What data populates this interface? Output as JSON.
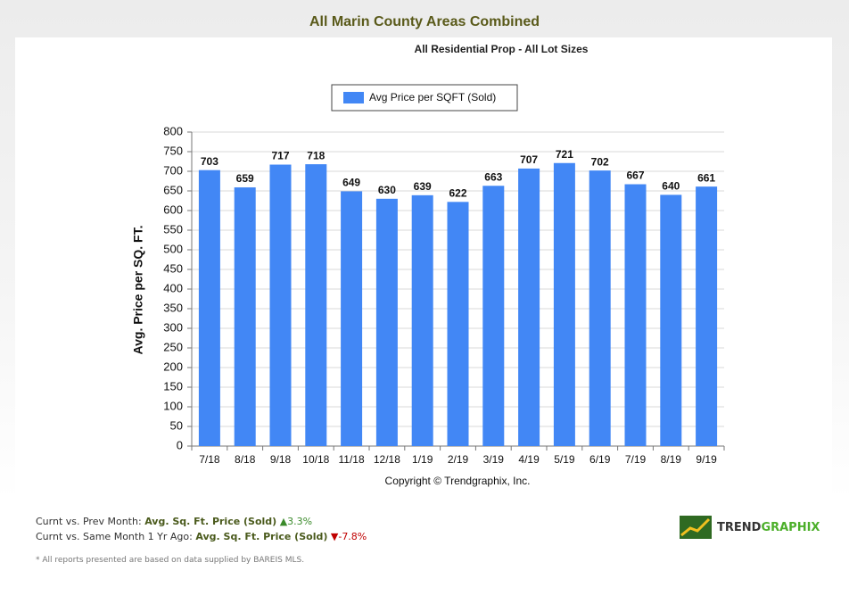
{
  "chart_data": {
    "type": "bar",
    "title": "All Marin County Areas Combined",
    "subtitle": "All Residential Prop - All Lot Sizes",
    "y_label": "Avg. Price per SQ. FT.",
    "credit": "Copyright © Trendgraphix, Inc.",
    "categories": [
      "7/18",
      "8/18",
      "9/18",
      "10/18",
      "11/18",
      "12/18",
      "1/19",
      "2/19",
      "3/19",
      "4/19",
      "5/19",
      "6/19",
      "7/19",
      "8/19",
      "9/19"
    ],
    "series": [
      {
        "name": "Avg Price per SQFT (Sold)",
        "color": "#4287f5",
        "values": [
          703,
          659,
          717,
          718,
          649,
          630,
          639,
          622,
          663,
          707,
          721,
          702,
          667,
          640,
          661
        ]
      }
    ],
    "ylim": [
      0,
      800
    ],
    "yticks": [
      0,
      50,
      100,
      150,
      200,
      250,
      300,
      350,
      400,
      450,
      500,
      550,
      600,
      650,
      700,
      750,
      800
    ],
    "grid": true
  },
  "footer": {
    "line1": {
      "label": "Curnt vs. Prev Month:",
      "metric": "Avg. Sq. Ft. Price (Sold)",
      "change": "3.3%"
    },
    "line2": {
      "label": "Curnt vs. Same Month 1 Yr Ago:",
      "metric": "Avg. Sq. Ft. Price (Sold)",
      "change": "-7.8%"
    },
    "note": "* All reports presented are based on data supplied by BAREIS MLS.",
    "logo": [
      "TREND",
      "GRAPHIX"
    ]
  }
}
